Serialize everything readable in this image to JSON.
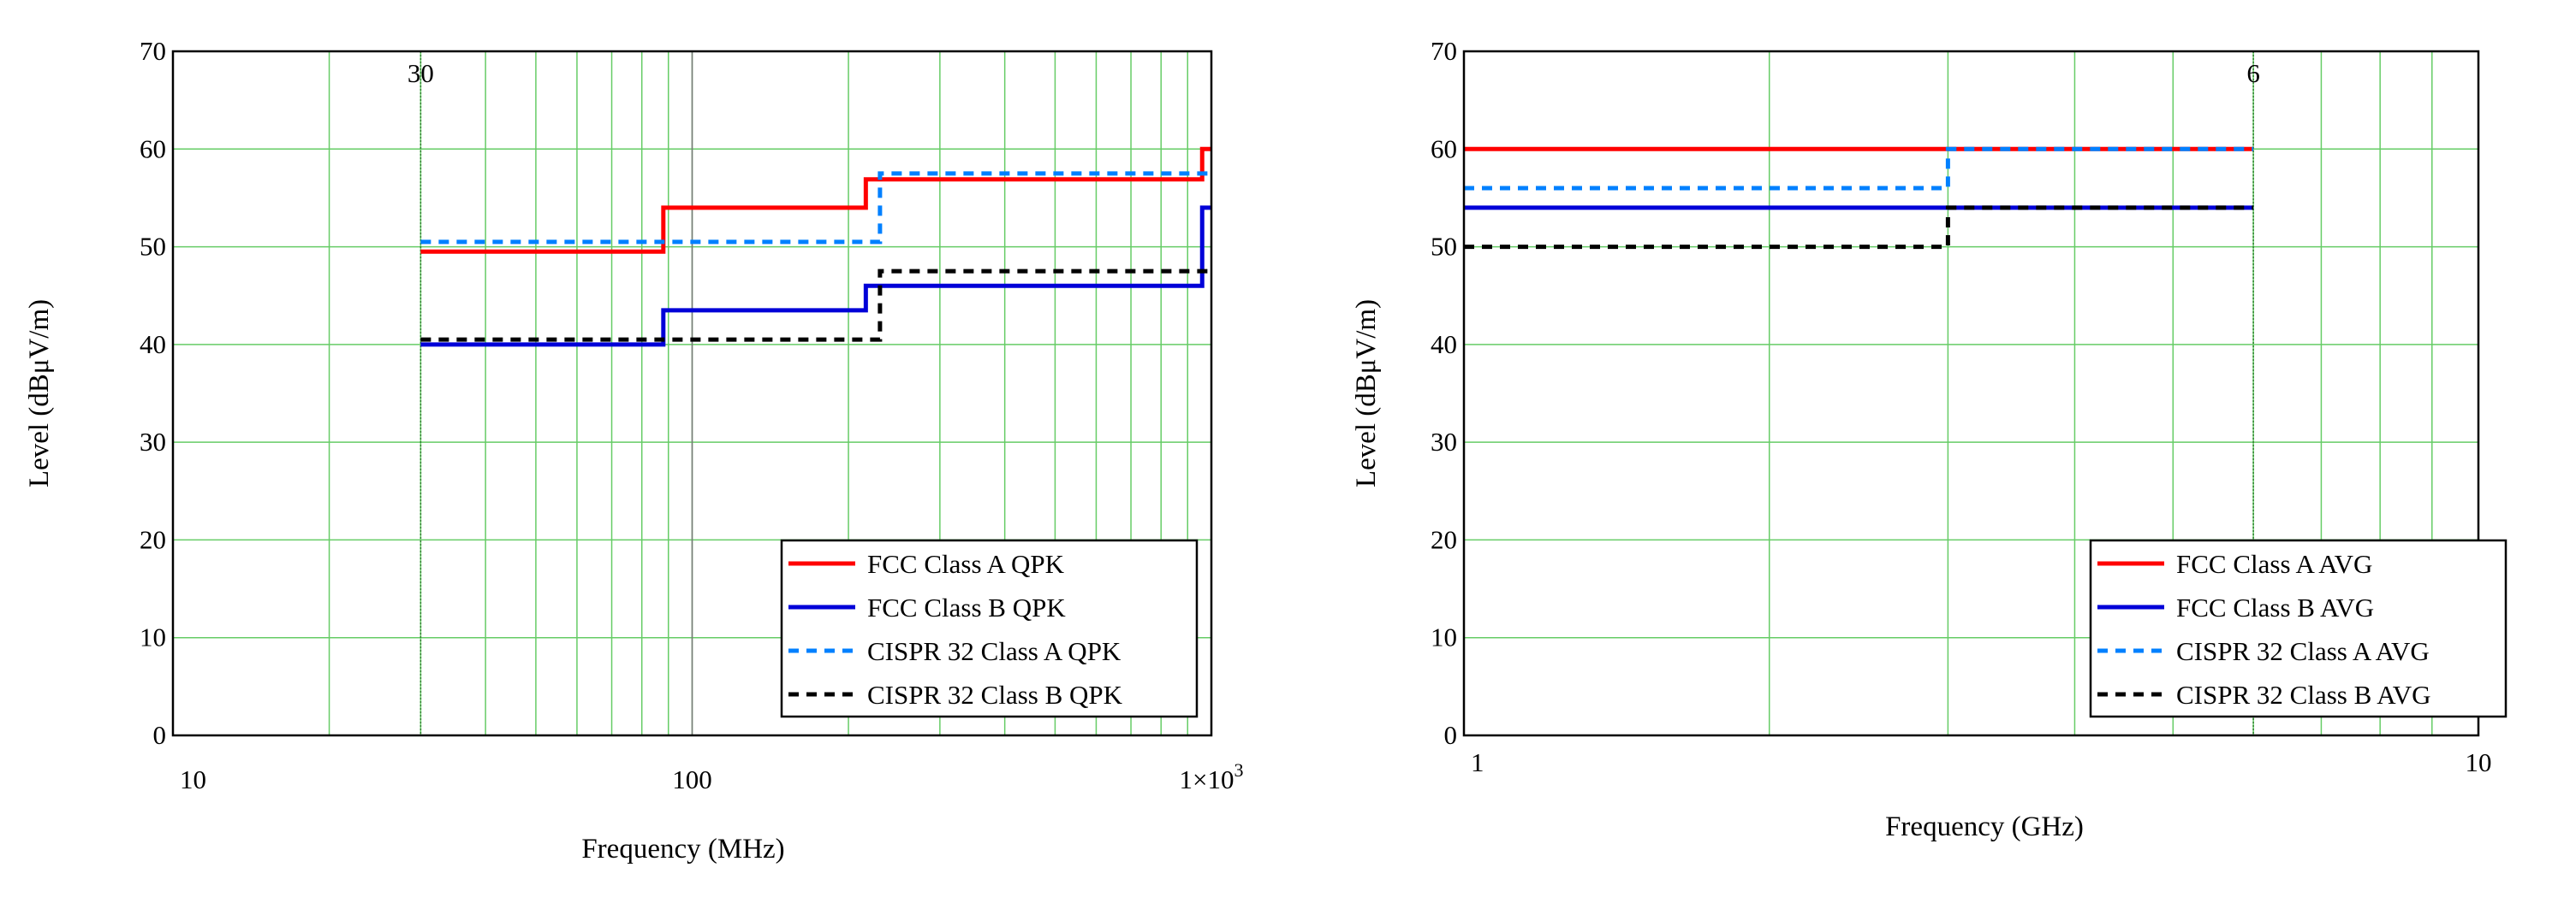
{
  "chart_data": [
    {
      "type": "line",
      "subtype": "step",
      "x_scale": "log",
      "xlim": [
        10,
        1000
      ],
      "ylim": [
        0,
        70
      ],
      "xlabel": "Frequency (MHz)",
      "ylabel": "Level  (dBμV/m)",
      "grid": true,
      "legend_position": "bottom-right",
      "y_ticks": [
        "0",
        "10",
        "20",
        "30",
        "40",
        "50",
        "60",
        "70"
      ],
      "x_ticks": [
        {
          "value": 10,
          "label": "10"
        },
        {
          "value": 100,
          "label": "100"
        },
        {
          "value": 1000,
          "label": "1×10",
          "sup": "3"
        }
      ],
      "marker": {
        "value": 30,
        "label": "30"
      },
      "series": [
        {
          "name": "FCC Class A QPK",
          "color": "#ff0000",
          "dash": "solid",
          "x": [
            30,
            88,
            216,
            960,
            1000
          ],
          "y": [
            49.5,
            54,
            56.9,
            60,
            60
          ]
        },
        {
          "name": "FCC Class B QPK",
          "color": "#0000d8",
          "dash": "solid",
          "x": [
            30,
            88,
            216,
            960,
            1000
          ],
          "y": [
            40,
            43.5,
            46,
            54,
            54
          ]
        },
        {
          "name": "CISPR 32 Class A QPK",
          "color": "#0080ff",
          "dash": "dashed",
          "x": [
            30,
            230,
            1000
          ],
          "y": [
            50.5,
            57.5,
            57.5
          ]
        },
        {
          "name": "CISPR 32 Class B QPK",
          "color": "#000000",
          "dash": "dashed",
          "x": [
            30,
            230,
            1000
          ],
          "y": [
            40.5,
            47.5,
            47.5
          ]
        }
      ]
    },
    {
      "type": "line",
      "subtype": "step",
      "x_scale": "log",
      "xlim": [
        1,
        10
      ],
      "ylim": [
        0,
        70
      ],
      "xlabel": "Frequency (GHz)",
      "ylabel": "Level  (dBμV/m)",
      "grid": true,
      "legend_position": "bottom-right",
      "y_ticks": [
        "0",
        "10",
        "20",
        "30",
        "40",
        "50",
        "60",
        "70"
      ],
      "x_ticks": [
        {
          "value": 1,
          "label": "1"
        },
        {
          "value": 10,
          "label": "10"
        }
      ],
      "marker": {
        "value": 6,
        "label": "6"
      },
      "series": [
        {
          "name": "FCC Class A AVG",
          "color": "#ff0000",
          "dash": "solid",
          "x": [
            1,
            6
          ],
          "y": [
            60,
            60
          ]
        },
        {
          "name": "FCC Class B AVG",
          "color": "#0000d8",
          "dash": "solid",
          "x": [
            1,
            6
          ],
          "y": [
            54,
            54
          ]
        },
        {
          "name": "CISPR 32 Class A AVG",
          "color": "#0080ff",
          "dash": "dashed",
          "x": [
            1,
            3,
            6
          ],
          "y": [
            56,
            60,
            60
          ]
        },
        {
          "name": "CISPR 32 Class B AVG",
          "color": "#000000",
          "dash": "dashed",
          "x": [
            1,
            3,
            6
          ],
          "y": [
            50,
            54,
            54
          ]
        }
      ]
    }
  ]
}
